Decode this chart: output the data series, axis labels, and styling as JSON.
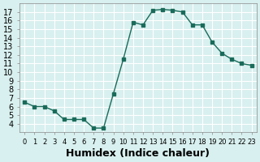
{
  "x": [
    0,
    1,
    2,
    3,
    4,
    5,
    6,
    7,
    8,
    9,
    10,
    11,
    12,
    13,
    14,
    15,
    16,
    17,
    18,
    19,
    20,
    21,
    22,
    23
  ],
  "y": [
    6.5,
    6.0,
    6.0,
    5.5,
    4.5,
    4.5,
    4.5,
    3.5,
    3.5,
    7.5,
    11.5,
    15.8,
    15.5,
    17.2,
    17.3,
    17.2,
    17.0,
    15.5,
    15.5,
    13.5,
    12.2,
    11.5,
    11.0,
    10.8
  ],
  "line_color": "#1a6b5a",
  "marker_style": "s",
  "marker_size": 3,
  "bg_color": "#d8f0ef",
  "grid_color": "#ffffff",
  "xlabel": "Humidex (Indice chaleur)",
  "xlim": [
    -0.5,
    23.5
  ],
  "ylim": [
    3,
    18
  ],
  "yticks": [
    4,
    5,
    6,
    7,
    8,
    9,
    10,
    11,
    12,
    13,
    14,
    15,
    16,
    17
  ],
  "xticks": [
    0,
    1,
    2,
    3,
    4,
    5,
    6,
    7,
    8,
    9,
    10,
    11,
    12,
    13,
    14,
    15,
    16,
    17,
    18,
    19,
    20,
    21,
    22,
    23
  ],
  "xtick_labels": [
    "0",
    "1",
    "2",
    "3",
    "4",
    "5",
    "6",
    "7",
    "8",
    "9",
    "10",
    "11",
    "12",
    "13",
    "14",
    "15",
    "16",
    "17",
    "18",
    "19",
    "20",
    "21",
    "22",
    "23"
  ],
  "xlabel_fontsize": 9,
  "tick_fontsize": 7
}
